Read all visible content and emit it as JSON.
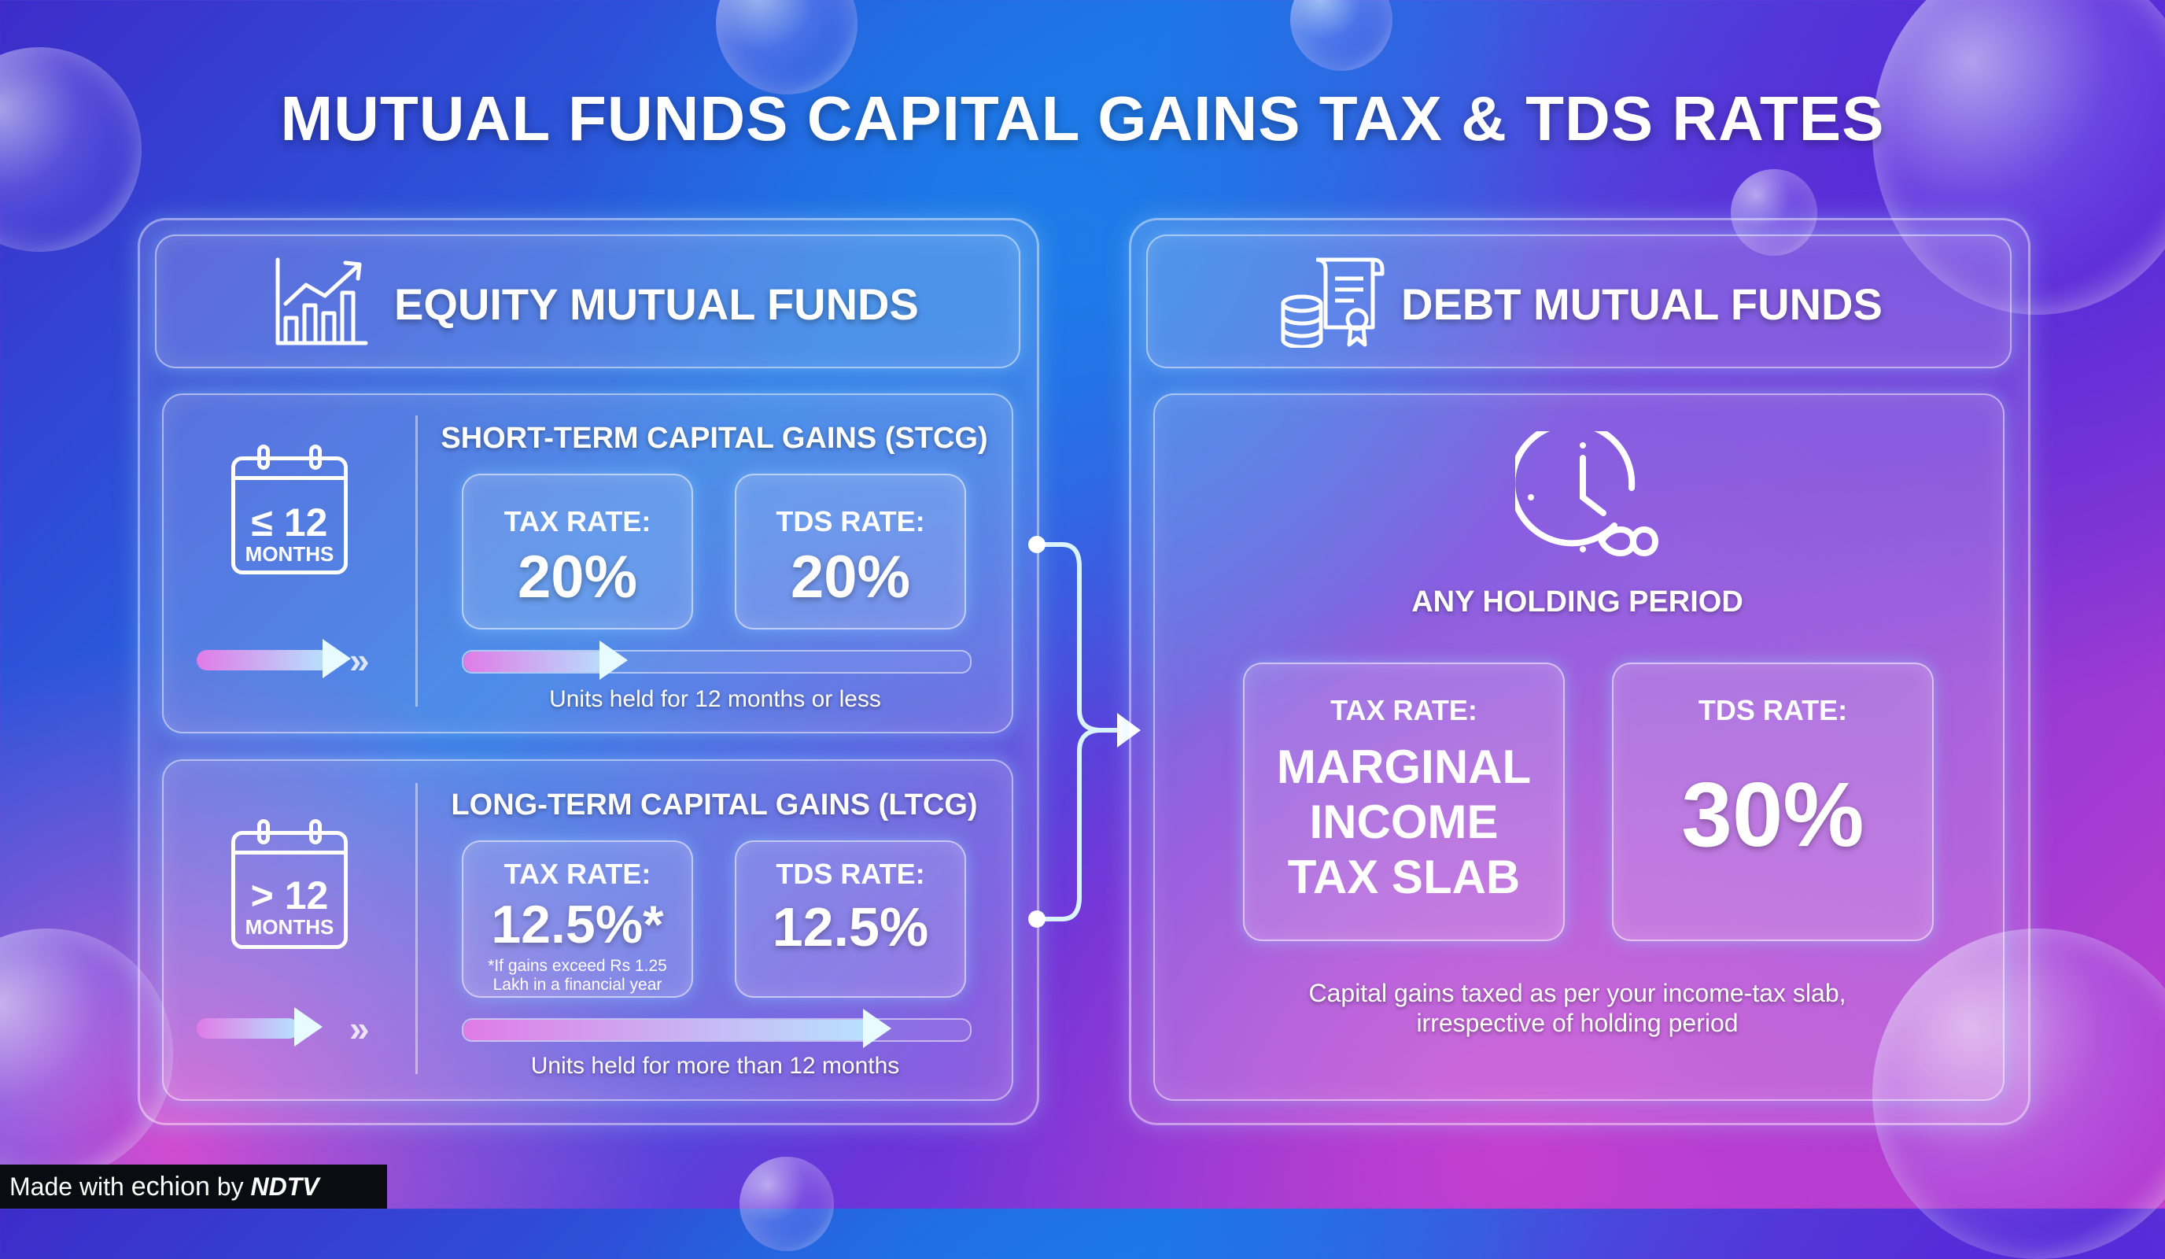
{
  "title": "MUTUAL FUNDS CAPITAL GAINS TAX & TDS RATES",
  "colors": {
    "accent": "#b6e4ff",
    "highlight": "#e07be6"
  },
  "equity": {
    "header": "EQUITY MUTUAL FUNDS",
    "icon": "bar-chart-trend-icon",
    "stcg": {
      "title": "SHORT-TERM CAPITAL GAINS (STCG)",
      "period_value": "≤ 12",
      "period_unit": "MONTHS",
      "tax_label": "TAX RATE:",
      "tax_value": "20%",
      "tds_label": "TDS RATE:",
      "tds_value": "20%",
      "progress": 0.3,
      "note": "Units held for 12 months or less"
    },
    "ltcg": {
      "title": "LONG-TERM CAPITAL GAINS (LTCG)",
      "period_value": "> 12",
      "period_unit": "MONTHS",
      "tax_label": "TAX RATE:",
      "tax_value": "12.5%*",
      "tax_footnote_1": "*If gains exceed Rs 1.25",
      "tax_footnote_2": "Lakh in a financial year",
      "tds_label": "TDS RATE:",
      "tds_value": "12.5%",
      "progress": 0.82,
      "note": "Units held for more than 12 months"
    }
  },
  "debt": {
    "header": "DEBT MUTUAL FUNDS",
    "icon": "coins-document-icon",
    "period_icon": "clock-infinity-icon",
    "period": "ANY HOLDING PERIOD",
    "tax_label": "TAX RATE:",
    "tax_line1": "MARGINAL",
    "tax_line2": "INCOME",
    "tax_line3": "TAX SLAB",
    "tds_label": "TDS RATE:",
    "tds_value": "30%",
    "note_line1": "Capital gains taxed as per your income-tax slab,",
    "note_line2": "irrespective of holding period"
  },
  "footer": {
    "made_with": "Made with",
    "brand": "echion",
    "by": "by",
    "publisher": "NDTV"
  }
}
